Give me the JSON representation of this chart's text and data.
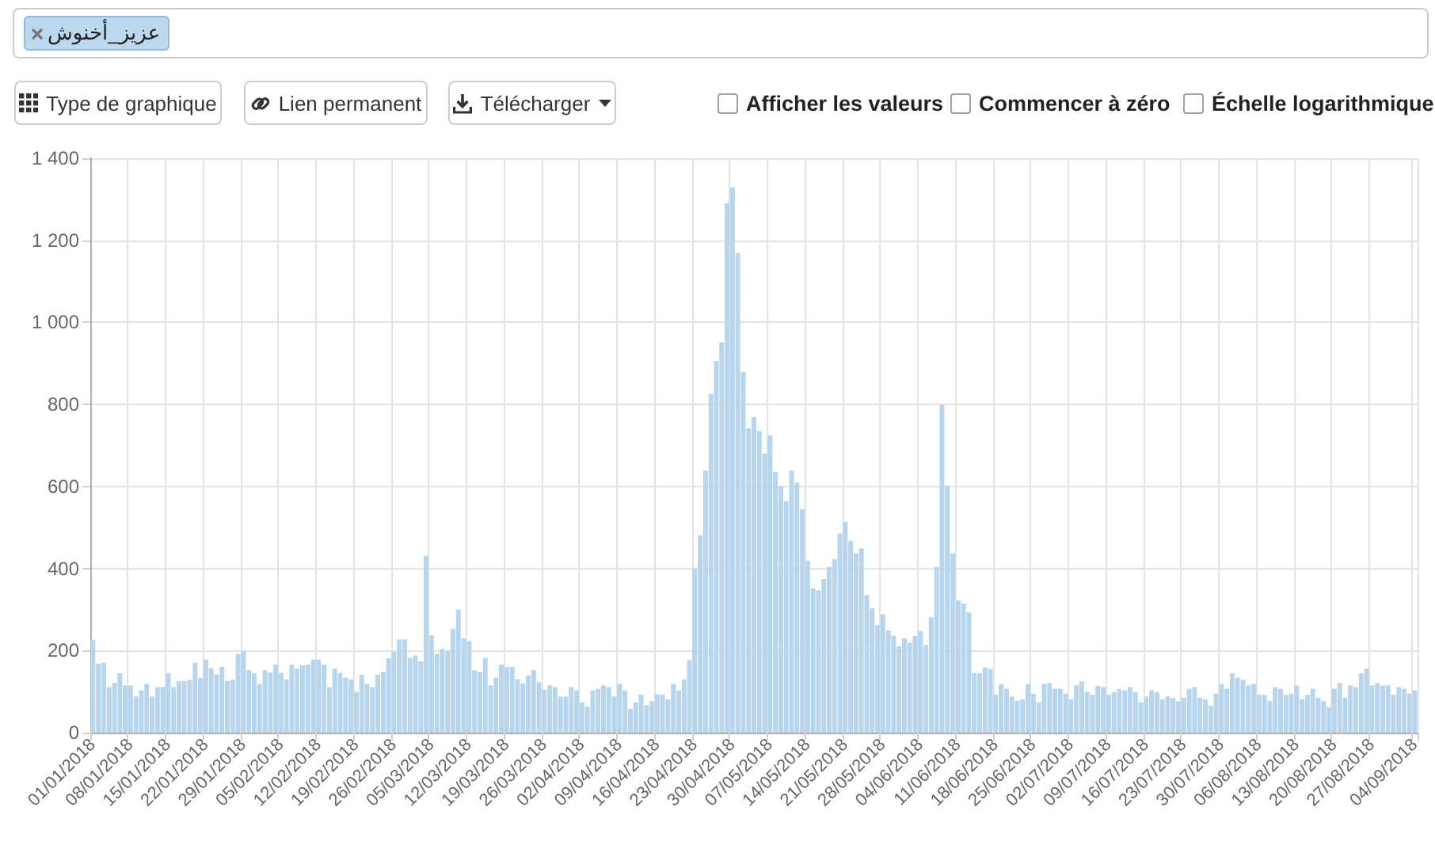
{
  "chart_data": {
    "type": "bar",
    "title": "عزيز_أخنوش",
    "annotations": [
      "Type de graphique",
      "Lien permanent",
      "Télécharger",
      "Afficher les valeurs",
      "Commencer à zéro",
      "Échelle logarithmique"
    ],
    "categories": [
      "01/01/2018",
      null,
      null,
      null,
      null,
      null,
      null,
      "08/01/2018",
      null,
      null,
      null,
      null,
      null,
      null,
      "15/01/2018",
      null,
      null,
      null,
      null,
      null,
      null,
      "22/01/2018",
      null,
      null,
      null,
      null,
      null,
      null,
      "29/01/2018",
      null,
      null,
      null,
      null,
      null,
      null,
      "05/02/2018",
      null,
      null,
      null,
      null,
      null,
      null,
      "12/02/2018",
      null,
      null,
      null,
      null,
      null,
      null,
      "19/02/2018",
      null,
      null,
      null,
      null,
      null,
      null,
      "26/02/2018",
      null,
      null,
      null,
      null,
      null,
      null,
      "05/03/2018",
      null,
      null,
      null,
      null,
      null,
      null,
      "12/03/2018",
      null,
      null,
      null,
      null,
      null,
      null,
      "19/03/2018",
      null,
      null,
      null,
      null,
      null,
      null,
      "26/03/2018",
      null,
      null,
      null,
      null,
      null,
      null,
      "02/04/2018",
      null,
      null,
      null,
      null,
      null,
      null,
      "09/04/2018",
      null,
      null,
      null,
      null,
      null,
      null,
      "16/04/2018",
      null,
      null,
      null,
      null,
      null,
      null,
      "23/04/2018",
      null,
      null,
      null,
      null,
      null,
      null,
      "30/04/2018",
      null,
      null,
      null,
      null,
      null,
      null,
      "07/05/2018",
      null,
      null,
      null,
      null,
      null,
      null,
      "14/05/2018",
      null,
      null,
      null,
      null,
      null,
      null,
      "21/05/2018",
      null,
      null,
      null,
      null,
      null,
      null,
      "28/05/2018",
      null,
      null,
      null,
      null,
      null,
      null,
      "04/06/2018",
      null,
      null,
      null,
      null,
      null,
      null,
      "11/06/2018",
      null,
      null,
      null,
      null,
      null,
      null,
      "18/06/2018",
      null,
      null,
      null,
      null,
      null,
      null,
      "25/06/2018",
      null,
      null,
      null,
      null,
      null,
      null,
      "02/07/2018",
      null,
      null,
      null,
      null,
      null,
      null,
      "09/07/2018",
      null,
      null,
      null,
      null,
      null,
      null,
      "16/07/2018",
      null,
      null,
      null,
      null,
      null,
      null,
      "23/07/2018",
      null,
      null,
      null,
      null,
      null,
      null,
      "30/07/2018",
      null,
      null,
      null,
      null,
      null,
      null,
      "06/08/2018",
      null,
      null,
      null,
      null,
      null,
      null,
      "13/08/2018",
      null,
      null,
      null,
      null,
      null,
      null,
      "20/08/2018",
      null,
      null,
      null,
      null,
      null,
      null,
      "27/08/2018",
      null,
      null,
      null,
      null,
      null,
      null,
      null,
      "04/09/2018"
    ],
    "values": [
      226,
      168,
      170,
      111,
      121,
      145,
      115,
      115,
      88,
      103,
      119,
      88,
      111,
      111,
      145,
      111,
      126,
      126,
      129,
      170,
      134,
      178,
      157,
      142,
      160,
      126,
      129,
      192,
      199,
      152,
      145,
      119,
      152,
      147,
      166,
      146,
      130,
      166,
      156,
      164,
      166,
      178,
      178,
      166,
      111,
      156,
      146,
      134,
      130,
      99,
      141,
      119,
      111,
      141,
      148,
      181,
      197,
      227,
      227,
      182,
      188,
      174,
      431,
      237,
      192,
      204,
      200,
      253,
      300,
      230,
      223,
      152,
      148,
      182,
      115,
      134,
      166,
      160,
      160,
      130,
      120,
      139,
      152,
      123,
      105,
      115,
      111,
      88,
      88,
      111,
      103,
      74,
      63,
      103,
      107,
      115,
      111,
      88,
      119,
      103,
      58,
      74,
      93,
      67,
      77,
      93,
      93,
      81,
      119,
      103,
      130,
      177,
      400,
      481,
      639,
      826,
      906,
      951,
      1290,
      1329,
      1169,
      880,
      742,
      769,
      735,
      680,
      724,
      635,
      601,
      564,
      639,
      609,
      545,
      419,
      352,
      347,
      374,
      404,
      423,
      485,
      514,
      467,
      437,
      449,
      335,
      303,
      262,
      289,
      249,
      236,
      210,
      230,
      219,
      236,
      248,
      214,
      281,
      404,
      799,
      601,
      437,
      323,
      315,
      293,
      145,
      145,
      159,
      155,
      92,
      119,
      107,
      88,
      77,
      81,
      119,
      95,
      74,
      119,
      121,
      107,
      107,
      95,
      81,
      115,
      125,
      99,
      92,
      114,
      111,
      92,
      99,
      106,
      103,
      111,
      99,
      74,
      88,
      103,
      99,
      81,
      88,
      84,
      77,
      85,
      107,
      111,
      85,
      81,
      66,
      95,
      119,
      107,
      145,
      134,
      129,
      115,
      119,
      92,
      92,
      77,
      111,
      107,
      92,
      95,
      115,
      81,
      92,
      107,
      85,
      77,
      62,
      107,
      121,
      85,
      115,
      111,
      145,
      156,
      115,
      121,
      115,
      115,
      92,
      111,
      107,
      95,
      103
    ],
    "color": "#b7d5ed",
    "ylim": [
      0,
      1400
    ],
    "yticks": [
      0,
      200,
      400,
      600,
      800,
      {
        "value": 1000,
        "label": "1 000"
      },
      {
        "value": 1200,
        "label": "1 200"
      },
      {
        "value": 1400,
        "label": "1 400"
      }
    ],
    "grid": true
  }
}
